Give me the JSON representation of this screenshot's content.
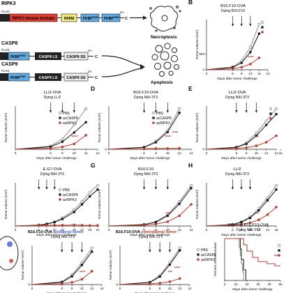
{
  "constructs": {
    "ripk3": {
      "name": "RIPK3",
      "tag": "FLAG",
      "kinase": "RIPK3 kinase domain",
      "rhim": "RHIM",
      "fkbp1": "FKBP",
      "fkbp2": "FKBP",
      "sup": "F36V",
      "tag2a": "2A",
      "c": "C"
    },
    "casp8": {
      "name": "CASP8",
      "tag": "FLAG",
      "fkbp": "FKBP",
      "sup": "F36V",
      "ls": "CASP8 LS",
      "ss": "CASP8 SS",
      "tag2a": "2A",
      "c": "C"
    },
    "casp9": {
      "name": "CASP9",
      "tag": "FLAG",
      "fkbp": "FKBP",
      "sup": "F36V",
      "ls": "CASP9 LS",
      "ss": "CASP9 SS",
      "tag2a": "2A",
      "c": "C"
    },
    "necroptosis_label": "Necroptosis",
    "apoptosis_label": "Apoptosis"
  },
  "common": {
    "xlabel": "Days after tumor challenge",
    "ylabel": "Tumor volume (mm³)",
    "legend": [
      "PBS",
      "acCASP8",
      "acRIPK3"
    ],
    "colors": {
      "PBS": "#8a8a8a",
      "acCASP8": "#111111",
      "acRIPK3": "#c0392b",
      "accent_blue": "#3b5bdb"
    },
    "star3": "***",
    "star4": "****"
  },
  "panels": {
    "B": {
      "letter": "B",
      "title": "B16.F10-OVA",
      "subtitle": "Dying B16.F10"
    },
    "C": {
      "letter": "",
      "title": "LL/2-OVA",
      "subtitle": "Dying LL/2"
    },
    "D": {
      "letter": "D",
      "title": "B16.F10-OVA",
      "subtitle": "Dying NIH 3T3"
    },
    "E": {
      "letter": "E",
      "title": "LL/2-OVA",
      "subtitle": "Dying NIH 3T3"
    },
    "F": {
      "letter": "",
      "title": "E.G7-OVA",
      "subtitle": "Dying NIH 3T3"
    },
    "G": {
      "letter": "G",
      "title": "B16.F10",
      "subtitle": "Dying NIH 3T3"
    },
    "H": {
      "letter": "H",
      "title": "LL/2",
      "subtitle": "Dying NIH 3T3"
    },
    "I1": {
      "letter": "",
      "title": "B16.F10-OVA",
      "title_suffix": "ipsilateral tumor",
      "subtitle": "Dying NIH 3T3"
    },
    "I2": {
      "letter": "",
      "title": "B16.F10-OVA",
      "title_suffix": "contralateral tumor",
      "subtitle": "Dying NIH 3T3"
    },
    "J": {
      "letter": "",
      "title": "Bilateral B16.F10-OVA",
      "subtitle": "Dying NIH 3T3",
      "ylabel": "Percent overall survival"
    }
  },
  "chart_data": [
    {
      "panel": "B",
      "type": "line",
      "xlim": [
        0,
        14
      ],
      "x_ticks": [
        "0",
        "6",
        "8",
        "10",
        "12",
        "14"
      ],
      "y_ticks": [
        "0",
        "500"
      ],
      "x": [
        0,
        6,
        8,
        10,
        12
      ],
      "injections": [
        6,
        8,
        10
      ],
      "series": [
        {
          "name": "PBS",
          "values": [
            0,
            90,
            280,
            720,
            1450
          ]
        },
        {
          "name": "acCASP8",
          "values": [
            0,
            80,
            220,
            560,
            1150
          ]
        },
        {
          "name": "acRIPK3",
          "values": [
            0,
            40,
            80,
            180,
            380
          ]
        }
      ],
      "stars": [
        "****"
      ]
    },
    {
      "panel": "C",
      "type": "line",
      "xlim": [
        0,
        14
      ],
      "x_ticks": [
        "0",
        "6",
        "8",
        "10",
        "12",
        "14"
      ],
      "y_ticks": [],
      "x": [
        0,
        6,
        8,
        10,
        12
      ],
      "injections": [
        6,
        8,
        10
      ],
      "series": [
        {
          "name": "PBS",
          "values": [
            0,
            120,
            380,
            900,
            1500
          ]
        },
        {
          "name": "acCASP8",
          "values": [
            0,
            90,
            280,
            620,
            1000
          ]
        },
        {
          "name": "acRIPK3",
          "values": [
            0,
            40,
            90,
            200,
            520
          ]
        }
      ],
      "stars": [
        "****"
      ]
    },
    {
      "panel": "D",
      "type": "line",
      "xlim": [
        0,
        14
      ],
      "x_ticks": [
        "0",
        "6",
        "8",
        "10",
        "12",
        "14"
      ],
      "y_ticks": [
        "0"
      ],
      "x": [
        0,
        6,
        8,
        10,
        12
      ],
      "injections": [
        6,
        8,
        10
      ],
      "series": [
        {
          "name": "PBS",
          "values": [
            0,
            80,
            300,
            700,
            1500
          ]
        },
        {
          "name": "acCASP8",
          "values": [
            0,
            70,
            260,
            640,
            1350
          ]
        },
        {
          "name": "acRIPK3",
          "values": [
            0,
            20,
            30,
            30,
            40
          ]
        }
      ],
      "stars": [
        "****",
        "****"
      ]
    },
    {
      "panel": "E",
      "type": "line",
      "xlim": [
        0,
        14
      ],
      "x_ticks": [
        "0",
        "6",
        "8",
        "10",
        "12",
        "14",
        "16"
      ],
      "y_ticks": [
        "0"
      ],
      "x": [
        0,
        6,
        8,
        10,
        12,
        14
      ],
      "injections": [
        6,
        8,
        10
      ],
      "series": [
        {
          "name": "PBS",
          "values": [
            0,
            80,
            240,
            600,
            1050,
            1500
          ]
        },
        {
          "name": "acCASP8",
          "values": [
            0,
            70,
            200,
            500,
            900,
            1300
          ]
        },
        {
          "name": "acRIPK3",
          "values": [
            0,
            30,
            60,
            130,
            260,
            500
          ]
        }
      ],
      "stars": [
        "***"
      ]
    },
    {
      "panel": "F",
      "type": "line",
      "xlim": [
        0,
        21
      ],
      "x_ticks": [
        "0",
        "6",
        "8",
        "10",
        "12",
        "15",
        "17",
        "19",
        "21"
      ],
      "y_ticks": [],
      "x": [
        0,
        6,
        8,
        10,
        12,
        15,
        17,
        19,
        21
      ],
      "injections": [
        6,
        8,
        10
      ],
      "series": [
        {
          "name": "PBS",
          "values": [
            0,
            40,
            80,
            160,
            300,
            600,
            900,
            1250,
            1500
          ]
        },
        {
          "name": "acCASP8",
          "values": [
            0,
            30,
            70,
            140,
            260,
            520,
            800,
            1100,
            1350
          ]
        },
        {
          "name": "acRIPK3",
          "values": [
            0,
            20,
            30,
            30,
            30,
            40,
            30,
            20,
            20
          ]
        }
      ],
      "stars": []
    },
    {
      "panel": "G",
      "type": "line",
      "xlim": [
        0,
        14
      ],
      "x_ticks": [
        "0",
        "6",
        "8",
        "10",
        "12",
        "14"
      ],
      "y_ticks": [],
      "x": [
        0,
        6,
        8,
        10,
        12,
        14
      ],
      "injections": [
        6,
        8,
        10
      ],
      "series": [
        {
          "name": "PBS",
          "values": [
            0,
            60,
            160,
            420,
            900,
            1500
          ]
        },
        {
          "name": "acCASP8",
          "values": [
            0,
            50,
            140,
            380,
            820,
            1400
          ]
        },
        {
          "name": "acRIPK3",
          "values": [
            0,
            30,
            70,
            160,
            380,
            800
          ]
        }
      ],
      "stars": [
        "***"
      ]
    },
    {
      "panel": "H",
      "type": "line",
      "xlim": [
        0,
        16
      ],
      "x_ticks": [
        "0",
        "6",
        "8",
        "10",
        "12",
        "14",
        "16"
      ],
      "y_ticks": [],
      "x": [
        0,
        6,
        8,
        10,
        12,
        14,
        16
      ],
      "injections": [
        6,
        8,
        10
      ],
      "series": [
        {
          "name": "PBS",
          "values": [
            0,
            60,
            160,
            340,
            650,
            1050,
            1500
          ]
        },
        {
          "name": "acCASP8",
          "values": [
            0,
            50,
            140,
            300,
            580,
            950,
            1350
          ]
        },
        {
          "name": "acRIPK3",
          "values": [
            0,
            30,
            60,
            120,
            230,
            420,
            700
          ]
        }
      ],
      "stars": [
        "***"
      ]
    },
    {
      "panel": "I1",
      "type": "line",
      "xlim": [
        0,
        14
      ],
      "x_ticks": [
        "0",
        "6",
        "8",
        "10",
        "12",
        "14"
      ],
      "y_ticks": [
        "0"
      ],
      "x": [
        0,
        6,
        8,
        10,
        12
      ],
      "injections": [
        6,
        8,
        10
      ],
      "series": [
        {
          "name": "PBS",
          "values": [
            0,
            120,
            400,
            900,
            1500
          ]
        },
        {
          "name": "acCASP8",
          "values": [
            0,
            100,
            340,
            800,
            1350
          ]
        },
        {
          "name": "acRIPK3",
          "values": [
            0,
            40,
            90,
            220,
            550
          ]
        }
      ],
      "stars": [
        "****"
      ]
    },
    {
      "panel": "I2",
      "type": "line",
      "xlim": [
        0,
        14
      ],
      "x_ticks": [
        "0",
        "6",
        "8",
        "10",
        "12",
        "14"
      ],
      "y_ticks": [
        "0"
      ],
      "x": [
        0,
        6,
        8,
        10,
        12
      ],
      "injections": [
        6,
        8,
        10
      ],
      "series": [
        {
          "name": "PBS",
          "values": [
            0,
            100,
            380,
            900,
            1500
          ]
        },
        {
          "name": "acCASP8",
          "values": [
            0,
            90,
            330,
            820,
            1400
          ]
        },
        {
          "name": "acRIPK3",
          "values": [
            0,
            30,
            60,
            120,
            250
          ]
        }
      ],
      "stars": [
        "***",
        "****"
      ]
    },
    {
      "panel": "J",
      "type": "line",
      "subtype": "survival",
      "xlim": [
        0,
        50
      ],
      "x_ticks": [
        "0",
        "10",
        "20",
        "30",
        "40",
        "50"
      ],
      "y_ticks": [],
      "series": [
        {
          "name": "PBS",
          "points": [
            [
              0,
              100
            ],
            [
              12,
              100
            ],
            [
              13,
              80
            ],
            [
              14,
              60
            ],
            [
              15,
              40
            ],
            [
              16,
              20
            ],
            [
              17,
              0
            ]
          ]
        },
        {
          "name": "acCASP8",
          "points": [
            [
              0,
              100
            ],
            [
              13,
              100
            ],
            [
              14,
              75
            ],
            [
              15,
              50
            ],
            [
              17,
              25
            ],
            [
              19,
              0
            ]
          ]
        },
        {
          "name": "acRIPK3",
          "points": [
            [
              0,
              100
            ],
            [
              15,
              100
            ],
            [
              17,
              85
            ],
            [
              20,
              70
            ],
            [
              25,
              55
            ],
            [
              30,
              45
            ],
            [
              38,
              40
            ],
            [
              45,
              35
            ],
            [
              50,
              35
            ]
          ]
        }
      ],
      "stars": [
        "***"
      ]
    }
  ]
}
